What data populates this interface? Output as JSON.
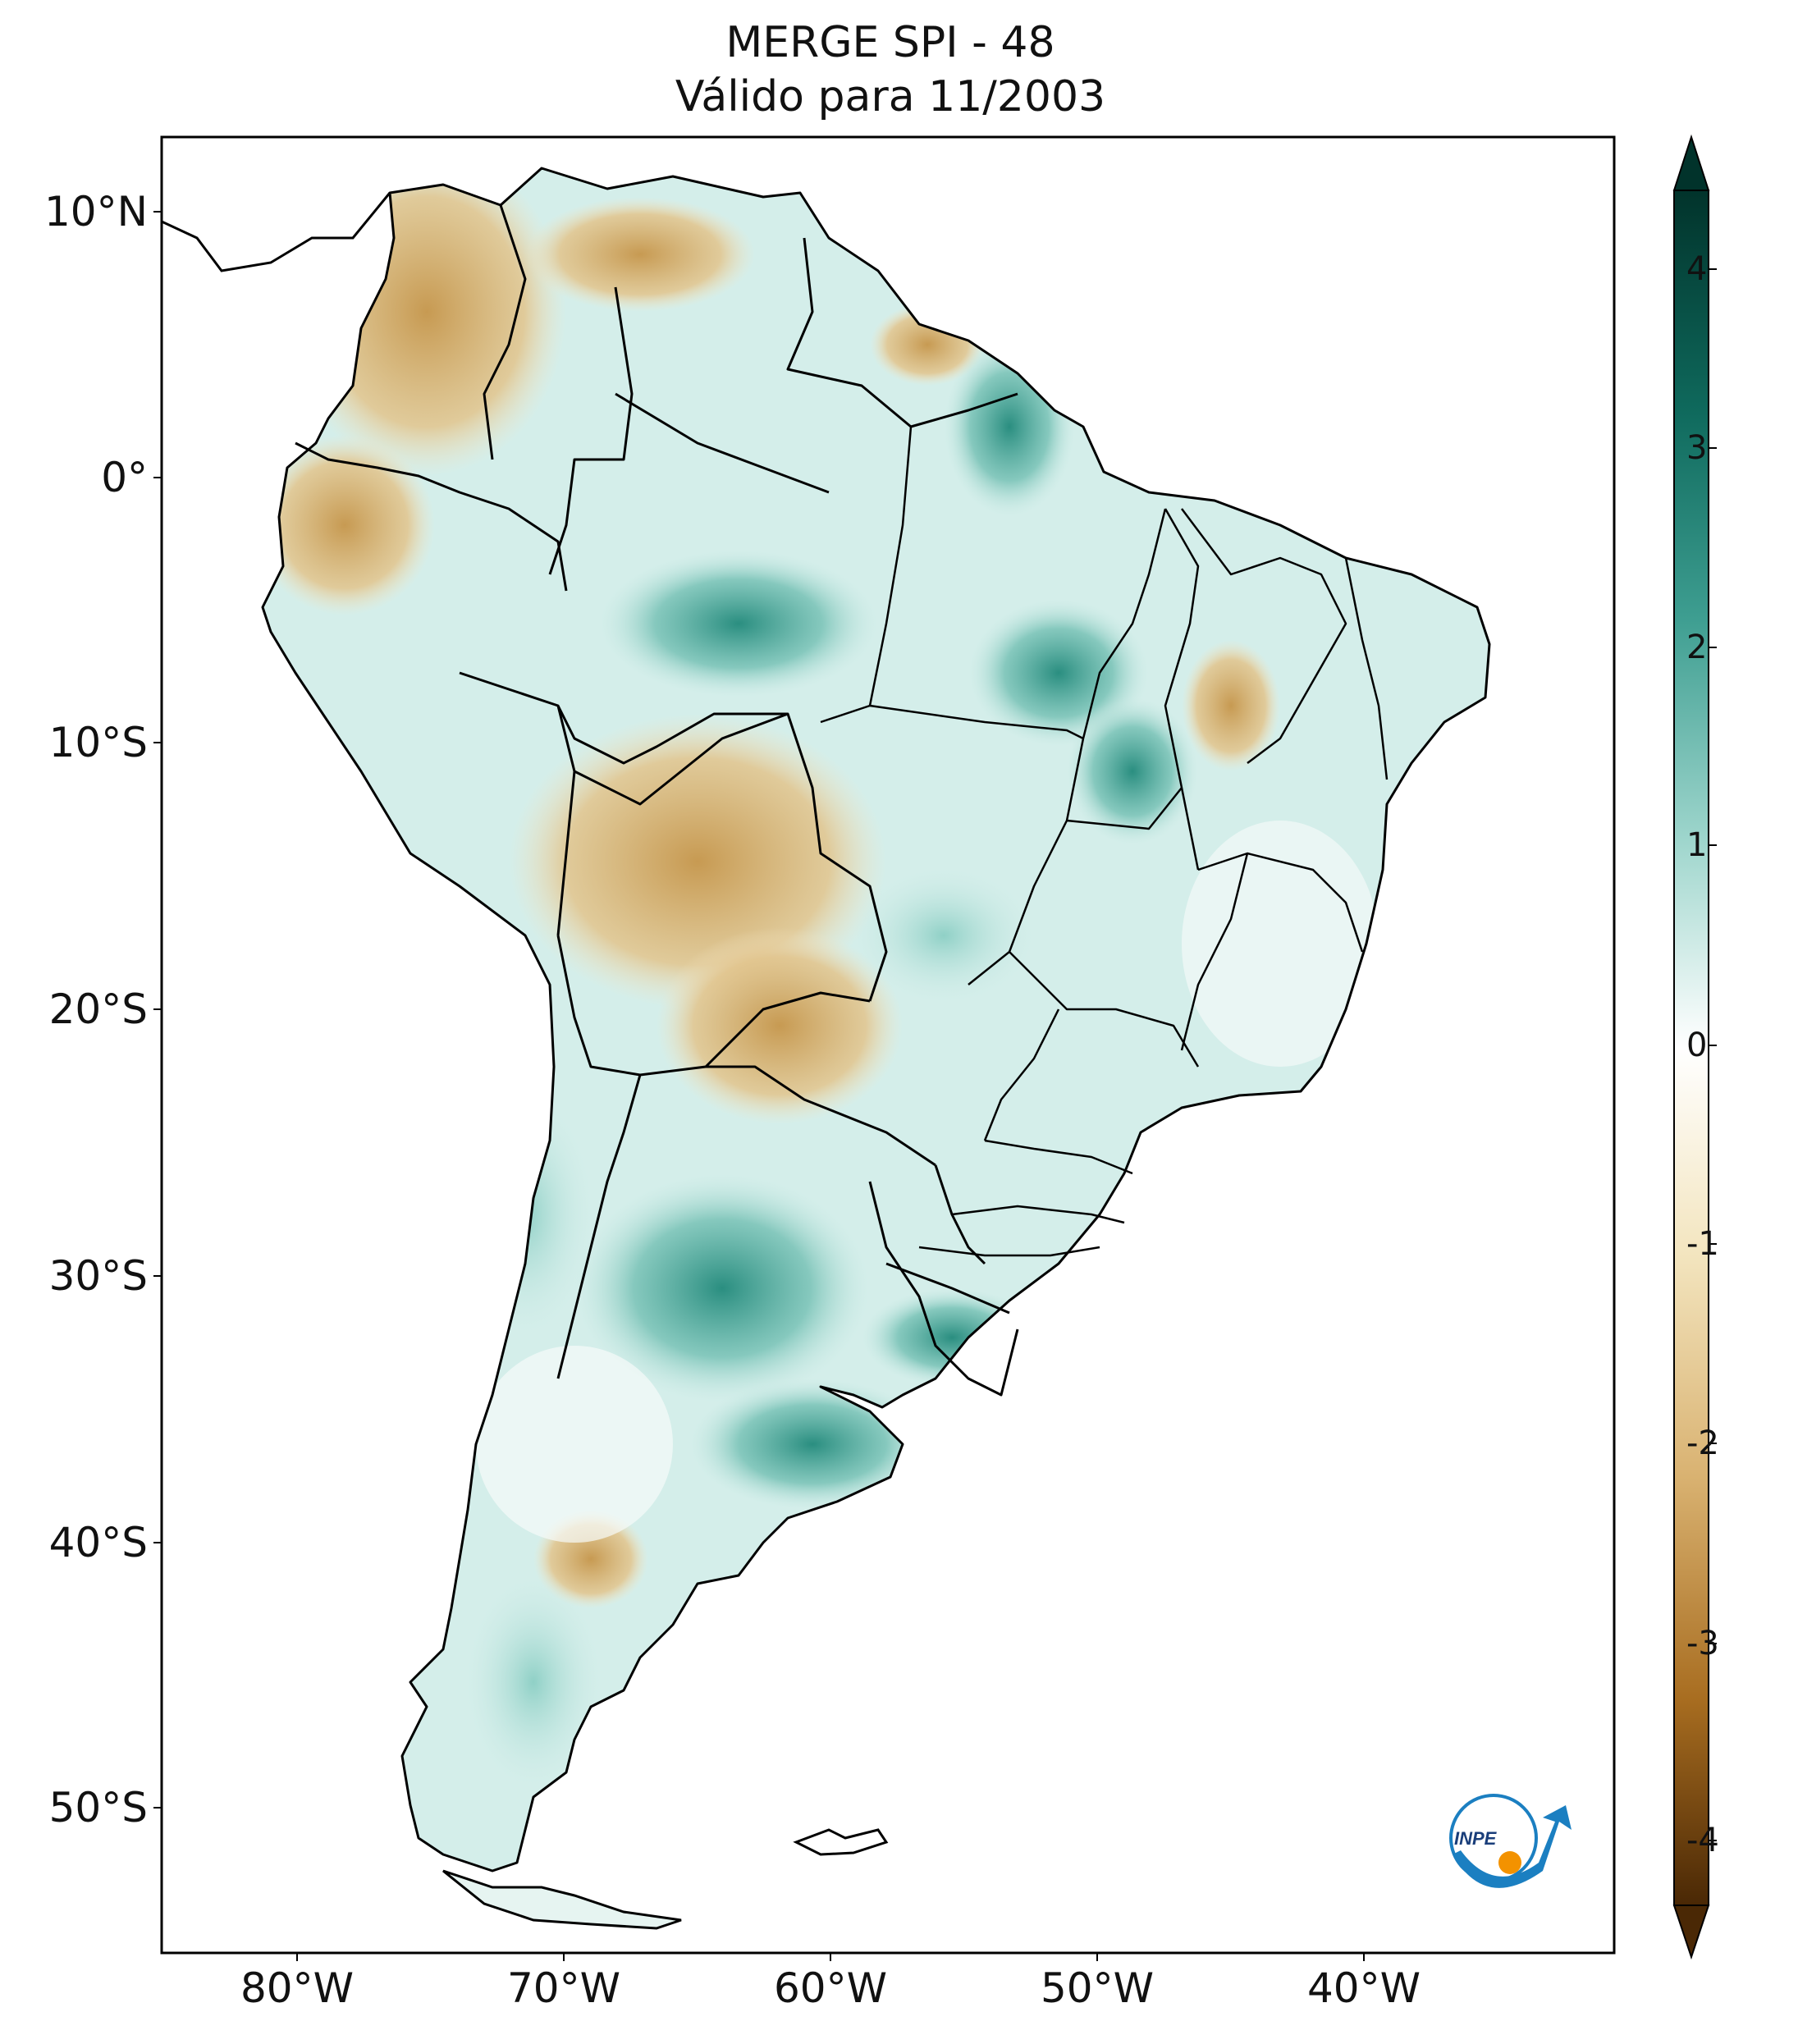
{
  "title": {
    "line1": "MERGE   SPI - 48",
    "line2": "Válido para 11/2003"
  },
  "map": {
    "region": "South America",
    "variable": "SPI - 48",
    "lat_ticks": [
      "10°N",
      "0°",
      "10°S",
      "20°S",
      "30°S",
      "40°S",
      "50°S"
    ],
    "lon_ticks": [
      "80°W",
      "70°W",
      "60°W",
      "50°W",
      "40°W"
    ]
  },
  "colorbar": {
    "min": -4,
    "max": 4,
    "ticks": [
      "4",
      "3",
      "2",
      "1",
      "0",
      "-1",
      "-2",
      "-3",
      "-4"
    ],
    "colors": {
      "high": "#01332b",
      "mid_high": "#2a8b7e",
      "light_high": "#c7eae5",
      "zero": "#ffffff",
      "light_low": "#f0e2b8",
      "mid_low": "#bf8a3c",
      "low": "#4a2805"
    }
  },
  "logo": {
    "text": "INPE"
  }
}
